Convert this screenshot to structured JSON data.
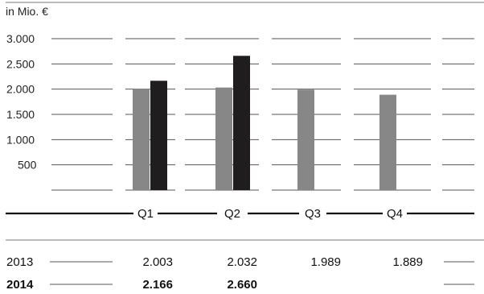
{
  "chart_data": {
    "type": "bar",
    "unit_label": "in Mio. €",
    "categories": [
      "Q1",
      "Q2",
      "Q3",
      "Q4"
    ],
    "y_ticks": [
      "3.000",
      "2.500",
      "2.000",
      "1.500",
      "1.000",
      "500"
    ],
    "ylim": [
      0,
      3000
    ],
    "grid": true,
    "series": [
      {
        "name": "2013",
        "values": [
          2003,
          2032,
          1989,
          1889
        ],
        "labels": [
          "2.003",
          "2.032",
          "1.989",
          "1.889"
        ],
        "color": "#878787",
        "bold": false
      },
      {
        "name": "2014",
        "values": [
          2166,
          2660,
          null,
          null
        ],
        "labels": [
          "2.166",
          "2.660",
          "",
          ""
        ],
        "color": "#1f1d1d",
        "bold": true
      }
    ]
  }
}
